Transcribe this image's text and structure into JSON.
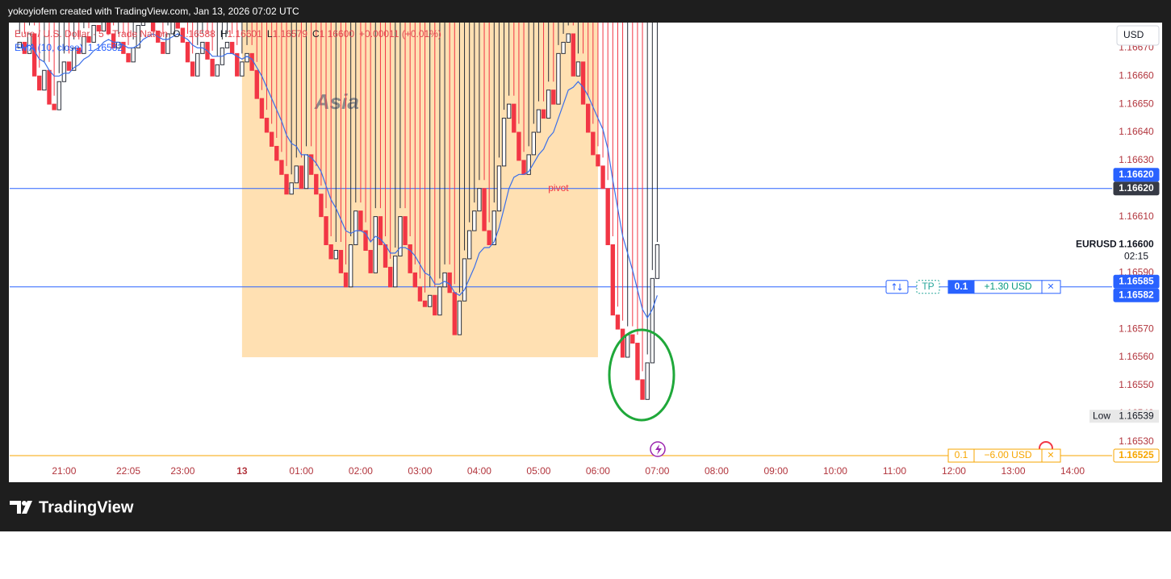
{
  "header": {
    "caption": "yokoyiofem created with TradingView.com, Jan 13, 2026 07:02 UTC"
  },
  "legend": {
    "symbol": "Euro / U.S. Dollar · 5 · Trade Nation",
    "o": "O",
    "o_value": "1.16588",
    "h": "H",
    "h_value": "1.16601",
    "l": "L",
    "l_value": "1.16579",
    "c": "C",
    "c_value": "1.16600",
    "change": "+0.00011 (+0.01%)",
    "ema": "EMA (10, close)",
    "ema_value": "1.16582"
  },
  "currency_button": "USD",
  "footer": {
    "logo": "TradingView"
  },
  "chart_data": {
    "type": "candlestick",
    "grid": false,
    "up_color": "#2a2e39",
    "down_color": "#f23645",
    "xlim": [
      -2,
      221
    ],
    "ylim": [
      1.16523,
      1.16679
    ],
    "xticks": [
      {
        "value": 9,
        "label": "21:00"
      },
      {
        "value": 22,
        "label": "22:05"
      },
      {
        "value": 33,
        "label": "23:00"
      },
      {
        "value": 45,
        "label": "13"
      },
      {
        "value": 57,
        "label": "01:00"
      },
      {
        "value": 69,
        "label": "02:00"
      },
      {
        "value": 81,
        "label": "03:00"
      },
      {
        "value": 93,
        "label": "04:00"
      },
      {
        "value": 105,
        "label": "05:00"
      },
      {
        "value": 117,
        "label": "06:00"
      },
      {
        "value": 129,
        "label": "07:00"
      },
      {
        "value": 141,
        "label": "08:00"
      },
      {
        "value": 153,
        "label": "09:00"
      },
      {
        "value": 165,
        "label": "10:00"
      },
      {
        "value": 177,
        "label": "11:00"
      },
      {
        "value": 189,
        "label": "12:00"
      },
      {
        "value": 201,
        "label": "13:00"
      },
      {
        "value": 213,
        "label": "14:00"
      }
    ],
    "yticks": [
      {
        "value": 1.1653,
        "label": "1.16530"
      },
      {
        "value": 1.1654,
        "label": "1.16540"
      },
      {
        "value": 1.1655,
        "label": "1.16550"
      },
      {
        "value": 1.1656,
        "label": "1.16560"
      },
      {
        "value": 1.1657,
        "label": "1.16570"
      },
      {
        "value": 1.1658,
        "label": "1.16580"
      },
      {
        "value": 1.1659,
        "label": "1.16590"
      },
      {
        "value": 1.166,
        "label": "1.16600"
      },
      {
        "value": 1.1661,
        "label": "1.16610"
      },
      {
        "value": 1.1662,
        "label": "1.16620"
      },
      {
        "value": 1.1663,
        "label": "1.16630"
      },
      {
        "value": 1.1664,
        "label": "1.16640"
      },
      {
        "value": 1.1665,
        "label": "1.16650"
      },
      {
        "value": 1.1666,
        "label": "1.16660"
      },
      {
        "value": 1.1667,
        "label": "1.16670"
      }
    ],
    "hidden_ticks": [
      5,
      7,
      9
    ],
    "open": [
      1.1667,
      1.16672,
      1.16668,
      1.16675,
      1.1666,
      1.16655,
      1.16662,
      1.1665,
      1.16648,
      1.16658,
      1.16665,
      1.16662,
      1.1667,
      1.16668,
      1.16674,
      1.16672,
      1.16678,
      1.16676,
      1.1668,
      1.16675,
      1.1667,
      1.16672,
      1.16668,
      1.16665,
      1.1667,
      1.16678,
      1.16682,
      1.1668,
      1.16676,
      1.16672,
      1.16668,
      1.16675,
      1.1668,
      1.16677,
      1.16672,
      1.16665,
      1.1666,
      1.16668,
      1.16672,
      1.16666,
      1.1666,
      1.16664,
      1.1667,
      1.16672,
      1.16668,
      1.1666,
      1.16665,
      1.16668,
      1.16662,
      1.16652,
      1.16645,
      1.1664,
      1.16635,
      1.1663,
      1.16625,
      1.16618,
      1.16622,
      1.16628,
      1.1662,
      1.16632,
      1.16625,
      1.16618,
      1.1661,
      1.166,
      1.16595,
      1.16598,
      1.1659,
      1.16585,
      1.166,
      1.16612,
      1.16605,
      1.16598,
      1.1659,
      1.1661,
      1.166,
      1.16592,
      1.16585,
      1.16596,
      1.1661,
      1.166,
      1.1659,
      1.16585,
      1.1658,
      1.16578,
      1.16582,
      1.16575,
      1.16585,
      1.1659,
      1.16583,
      1.16568,
      1.1658,
      1.16595,
      1.16605,
      1.16612,
      1.1662,
      1.16605,
      1.166,
      1.16612,
      1.16628,
      1.16645,
      1.1665,
      1.1664,
      1.1663,
      1.16625,
      1.16632,
      1.1664,
      1.16648,
      1.16645,
      1.16655,
      1.1665,
      1.16668,
      1.16672,
      1.16675,
      1.1666,
      1.16665,
      1.1665,
      1.1664,
      1.16632,
      1.16628,
      1.1662,
      1.166,
      1.16575,
      1.1657,
      1.1656,
      1.16568,
      1.16565,
      1.16552,
      1.16545,
      1.16558,
      1.16588
    ],
    "high": [
      1.16675,
      1.16675,
      1.16678,
      1.16678,
      1.16663,
      1.16665,
      1.16665,
      1.16653,
      1.16661,
      1.16668,
      1.16668,
      1.16673,
      1.16673,
      1.16677,
      1.16677,
      1.16681,
      1.16681,
      1.16683,
      1.16683,
      1.16678,
      1.16675,
      1.16675,
      1.16671,
      1.16673,
      1.16681,
      1.16685,
      1.16685,
      1.16683,
      1.16679,
      1.16675,
      1.16678,
      1.16683,
      1.16683,
      1.1668,
      1.16675,
      1.16668,
      1.16671,
      1.16675,
      1.16675,
      1.16669,
      1.16667,
      1.16673,
      1.16675,
      1.16675,
      1.16671,
      1.16668,
      1.16671,
      1.16671,
      1.16665,
      1.16655,
      1.16648,
      1.16643,
      1.16638,
      1.16633,
      1.16628,
      1.16625,
      1.16631,
      1.16631,
      1.16635,
      1.16635,
      1.16628,
      1.16621,
      1.16613,
      1.16603,
      1.16601,
      1.16601,
      1.16593,
      1.16603,
      1.16615,
      1.16615,
      1.16608,
      1.16601,
      1.16613,
      1.16613,
      1.16603,
      1.16595,
      1.16599,
      1.16613,
      1.16613,
      1.16603,
      1.16593,
      1.16588,
      1.16583,
      1.16585,
      1.16585,
      1.16588,
      1.16593,
      1.16593,
      1.16586,
      1.16583,
      1.16598,
      1.16608,
      1.16615,
      1.16623,
      1.16623,
      1.16608,
      1.16615,
      1.16631,
      1.16648,
      1.16653,
      1.16653,
      1.16643,
      1.16633,
      1.16635,
      1.16643,
      1.16651,
      1.16651,
      1.16658,
      1.16658,
      1.16671,
      1.16675,
      1.16678,
      1.16678,
      1.16668,
      1.16668,
      1.16653,
      1.16643,
      1.16635,
      1.16631,
      1.16623,
      1.16603,
      1.16578,
      1.16573,
      1.16571,
      1.16571,
      1.16568,
      1.16555,
      1.16561,
      1.16591,
      1.16601
    ],
    "low": {
      "text": "Low",
      "value": 1.16539,
      "label": "1.16539"
    },
    "close": [
      1.16672,
      1.16668,
      1.16675,
      1.1666,
      1.16655,
      1.16662,
      1.1665,
      1.16648,
      1.16658,
      1.16665,
      1.16662,
      1.1667,
      1.16668,
      1.16674,
      1.16672,
      1.16678,
      1.16676,
      1.1668,
      1.16675,
      1.1667,
      1.16672,
      1.16668,
      1.16665,
      1.1667,
      1.16678,
      1.16682,
      1.1668,
      1.16676,
      1.16672,
      1.16668,
      1.16675,
      1.1668,
      1.16677,
      1.16672,
      1.16665,
      1.1666,
      1.16668,
      1.16672,
      1.16666,
      1.1666,
      1.16664,
      1.1667,
      1.16672,
      1.16668,
      1.1666,
      1.16665,
      1.16668,
      1.16662,
      1.16652,
      1.16645,
      1.1664,
      1.16635,
      1.1663,
      1.16625,
      1.16618,
      1.16622,
      1.16628,
      1.1662,
      1.16632,
      1.16625,
      1.16618,
      1.1661,
      1.166,
      1.16595,
      1.16598,
      1.1659,
      1.16585,
      1.166,
      1.16612,
      1.16605,
      1.16598,
      1.1659,
      1.1661,
      1.166,
      1.16592,
      1.16585,
      1.16596,
      1.1661,
      1.166,
      1.1659,
      1.16585,
      1.1658,
      1.16578,
      1.16582,
      1.16575,
      1.16585,
      1.1659,
      1.16583,
      1.16568,
      1.1658,
      1.16595,
      1.16605,
      1.16612,
      1.1662,
      1.16605,
      1.166,
      1.16612,
      1.16628,
      1.16645,
      1.1665,
      1.1664,
      1.1663,
      1.16625,
      1.16632,
      1.1664,
      1.16648,
      1.16645,
      1.16655,
      1.1665,
      1.16668,
      1.16672,
      1.16675,
      1.1666,
      1.16665,
      1.1665,
      1.1664,
      1.16632,
      1.16628,
      1.1662,
      1.166,
      1.16575,
      1.1657,
      1.1656,
      1.16568,
      1.16565,
      1.16552,
      1.16545,
      1.16558,
      1.16588,
      1.166
    ],
    "ema": {
      "color": "#3b6fe8",
      "values": [
        1.1667,
        1.1667,
        1.16671,
        1.16669,
        1.16666,
        1.16665,
        1.16662,
        1.1666,
        1.1666,
        1.16661,
        1.16661,
        1.16663,
        1.16664,
        1.16666,
        1.16667,
        1.16669,
        1.1667,
        1.16672,
        1.16673,
        1.16672,
        1.16672,
        1.16671,
        1.1667,
        1.1667,
        1.16671,
        1.16673,
        1.16674,
        1.16675,
        1.16674,
        1.16673,
        1.16673,
        1.16674,
        1.16675,
        1.16674,
        1.16673,
        1.16671,
        1.1667,
        1.1667,
        1.16669,
        1.16667,
        1.16667,
        1.16667,
        1.16668,
        1.16668,
        1.16667,
        1.16666,
        1.16667,
        1.16666,
        1.16663,
        1.1666,
        1.16656,
        1.16652,
        1.16648,
        1.16644,
        1.16639,
        1.16636,
        1.16635,
        1.16632,
        1.16632,
        1.16631,
        1.16629,
        1.16626,
        1.16621,
        1.16616,
        1.16613,
        1.16609,
        1.16605,
        1.16604,
        1.16605,
        1.16605,
        1.16604,
        1.16601,
        1.16603,
        1.16602,
        1.166,
        1.16597,
        1.16597,
        1.16599,
        1.16599,
        1.16598,
        1.16596,
        1.16593,
        1.1659,
        1.16589,
        1.16586,
        1.16586,
        1.16587,
        1.16586,
        1.16583,
        1.16582,
        1.16584,
        1.16588,
        1.16592,
        1.16597,
        1.16599,
        1.16599,
        1.16601,
        1.16606,
        1.16613,
        1.1662,
        1.16624,
        1.16625,
        1.16625,
        1.16626,
        1.16629,
        1.16632,
        1.16634,
        1.16638,
        1.1664,
        1.16645,
        1.1665,
        1.16655,
        1.16656,
        1.16658,
        1.16656,
        1.16653,
        1.16649,
        1.16645,
        1.16641,
        1.16634,
        1.16623,
        1.16613,
        1.16603,
        1.16597,
        1.16591,
        1.16584,
        1.16577,
        1.16574,
        1.16577,
        1.16582
      ]
    },
    "sessions": [
      {
        "label": "Asia",
        "x": [
          45,
          117
        ],
        "y": [
          1.1656,
          1.16679
        ],
        "color": "#ffe0b2"
      }
    ],
    "annotations": [
      {
        "text": "pivot",
        "x": 109,
        "y": 1.1662,
        "color": "#f23645"
      }
    ],
    "levels": [
      {
        "value": 1.1662,
        "color": "#2962ff"
      },
      {
        "value": 1.16585,
        "color": "#2962ff"
      },
      {
        "value": 1.16525,
        "color": "#f7a600"
      }
    ],
    "price_labels": [
      {
        "value": 1.1662,
        "label": "1.16620",
        "color": "#363a45"
      },
      {
        "value": 1.1662,
        "label": "1.16620",
        "color": "#2962ff"
      },
      {
        "value": 1.16582,
        "label": "1.16582",
        "color": "#2962ff"
      },
      {
        "value": 1.16585,
        "label": "1.16585",
        "color": "#2962ff"
      },
      {
        "value": 1.16525,
        "label": "1.16525",
        "color": "#f7a600",
        "outline": true
      }
    ],
    "current": {
      "symbol": "EURUSD",
      "value": 1.166,
      "label": "1.16600",
      "countdown": "02:15"
    },
    "position": {
      "value": 1.16585,
      "tp": "TP",
      "qty": "0.1",
      "pnl": "+1.30 USD",
      "close": "×"
    },
    "stop": {
      "value": 1.16525,
      "qty": "0.1",
      "pnl": "−6.00 USD",
      "close": "×"
    }
  }
}
